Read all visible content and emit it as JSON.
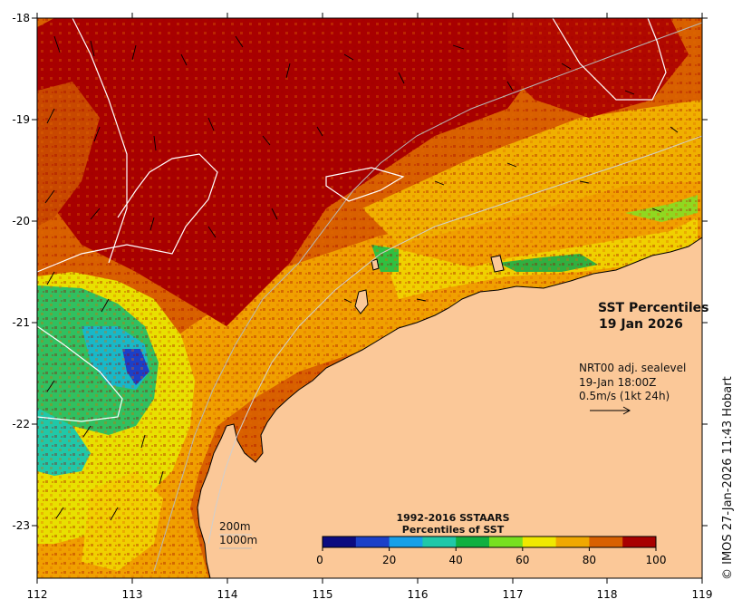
{
  "map": {
    "title": "SST Percentiles",
    "date": "19 Jan 2026",
    "x_ticks": [
      "112",
      "113",
      "114",
      "115",
      "116",
      "117",
      "118",
      "119"
    ],
    "y_ticks": [
      "-18",
      "-19",
      "-20",
      "-21",
      "-22",
      "-23"
    ],
    "vector_info": {
      "line1": "NRT00 adj. sealevel",
      "line2": "19-Jan 18:00Z",
      "line3": "0.5m/s (1kt 24h)"
    },
    "depth_legend": {
      "shallow": "200m",
      "deep": "1000m"
    },
    "colorbar": {
      "title_line1": "1992-2016 SSTAARS",
      "title_line2": "Percentiles of SST",
      "ticks": [
        "0",
        "20",
        "40",
        "60",
        "80",
        "100"
      ],
      "colors": [
        "#0b0b80",
        "#1b40c8",
        "#18a0e8",
        "#20c8a8",
        "#10b040",
        "#78e020",
        "#f0e800",
        "#f0a800",
        "#d86000",
        "#a80000"
      ]
    },
    "land_color": "#fbc898",
    "copyright": "© IMOS 27-Jan-2026 11:43 Hobart"
  }
}
